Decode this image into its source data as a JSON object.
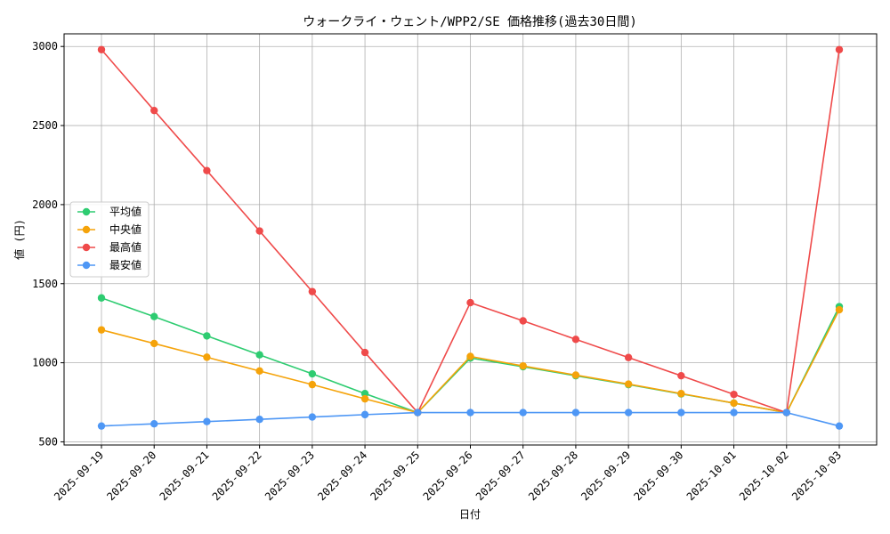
{
  "chart_data": {
    "type": "line",
    "title": "ウォークライ・ウェント/WPP2/SE 価格推移(過去30日間)",
    "xlabel": "日付",
    "ylabel": "値 (円)",
    "ylim": [
      480,
      3080
    ],
    "yticks": [
      500,
      1000,
      1500,
      2000,
      2500,
      3000
    ],
    "grid": true,
    "legend_position": "center-left",
    "categories": [
      "2025-09-19",
      "2025-09-20",
      "2025-09-21",
      "2025-09-22",
      "2025-09-23",
      "2025-09-24",
      "2025-09-25",
      "2025-09-26",
      "2025-09-27",
      "2025-09-28",
      "2025-09-29",
      "2025-09-30",
      "2025-10-01",
      "2025-10-02",
      "2025-10-03"
    ],
    "series": [
      {
        "name": "平均値",
        "color": "#2ecc71",
        "values": [
          1410,
          1292,
          1170,
          1050,
          930,
          805,
          685,
          1030,
          975,
          918,
          862,
          803,
          745,
          685,
          1355
        ]
      },
      {
        "name": "中央値",
        "color": "#f5a30a",
        "values": [
          1208,
          1122,
          1035,
          948,
          862,
          772,
          685,
          1040,
          980,
          922,
          865,
          805,
          745,
          685,
          1335
        ]
      },
      {
        "name": "最高値",
        "color": "#ef4a4a",
        "values": [
          2980,
          2595,
          2215,
          1833,
          1450,
          1065,
          685,
          1380,
          1265,
          1148,
          1033,
          918,
          800,
          685,
          2980
        ]
      },
      {
        "name": "最安値",
        "color": "#4e97f5",
        "values": [
          600,
          614,
          628,
          642,
          657,
          672,
          685,
          685,
          685,
          685,
          685,
          685,
          685,
          685,
          600
        ]
      }
    ]
  }
}
